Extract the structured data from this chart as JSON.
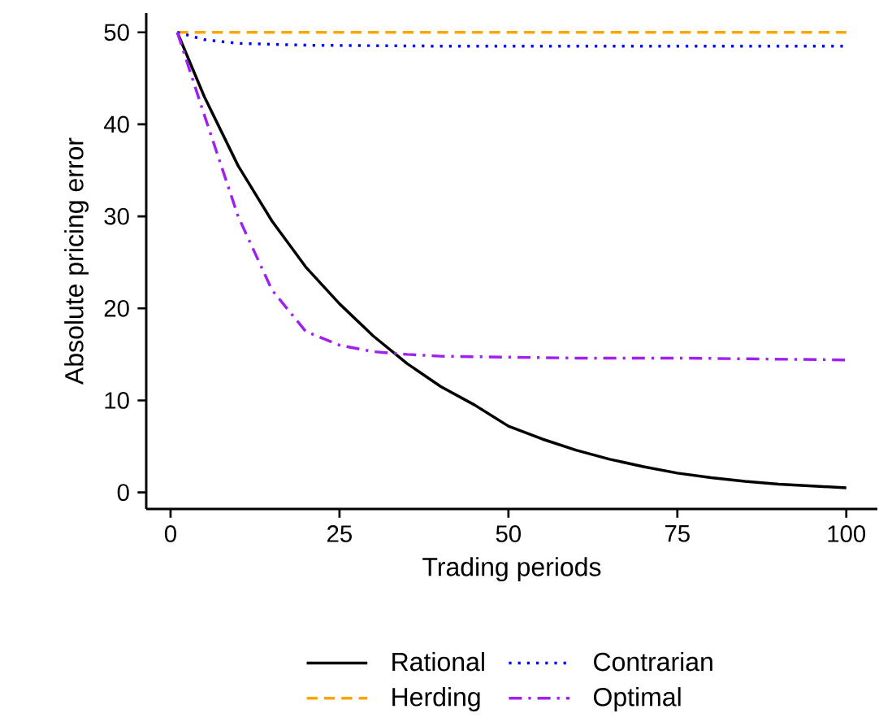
{
  "chart_data": {
    "type": "line",
    "xlabel": "Trading periods",
    "ylabel": "Absolute pricing error",
    "xlim": [
      -3.6,
      104.6
    ],
    "ylim": [
      -1.8,
      52.1
    ],
    "xticks": [
      0,
      25,
      50,
      75,
      100
    ],
    "yticks": [
      0,
      10,
      20,
      30,
      40,
      50
    ],
    "legend": "bottom",
    "grid": false,
    "marker": "none",
    "series": [
      {
        "name": "Rational",
        "color": "#000000",
        "line_style": "solid",
        "x": [
          1,
          5,
          10,
          15,
          20,
          25,
          30,
          35,
          40,
          45,
          50,
          55,
          60,
          65,
          70,
          75,
          80,
          85,
          90,
          95,
          100
        ],
        "values": [
          50,
          43,
          35.5,
          29.5,
          24.5,
          20.5,
          17,
          14,
          11.5,
          9.5,
          7.2,
          5.8,
          4.6,
          3.6,
          2.8,
          2.1,
          1.6,
          1.2,
          0.9,
          0.7,
          0.5
        ]
      },
      {
        "name": "Herding",
        "color": "#ffa500",
        "line_style": "dashed",
        "x": [
          1,
          100
        ],
        "values": [
          50,
          50
        ]
      },
      {
        "name": "Contrarian",
        "color": "#0000ff",
        "line_style": "dotted",
        "x": [
          1,
          5,
          10,
          20,
          40,
          100
        ],
        "values": [
          50,
          49.2,
          48.8,
          48.6,
          48.5,
          48.5
        ]
      },
      {
        "name": "Optimal",
        "color": "#a020f0",
        "line_style": "dashdot",
        "x": [
          1,
          5,
          10,
          15,
          20,
          25,
          30,
          35,
          40,
          50,
          60,
          75,
          100
        ],
        "values": [
          50,
          41,
          30,
          22,
          17.5,
          16,
          15.3,
          15,
          14.8,
          14.7,
          14.6,
          14.6,
          14.4
        ]
      }
    ]
  }
}
